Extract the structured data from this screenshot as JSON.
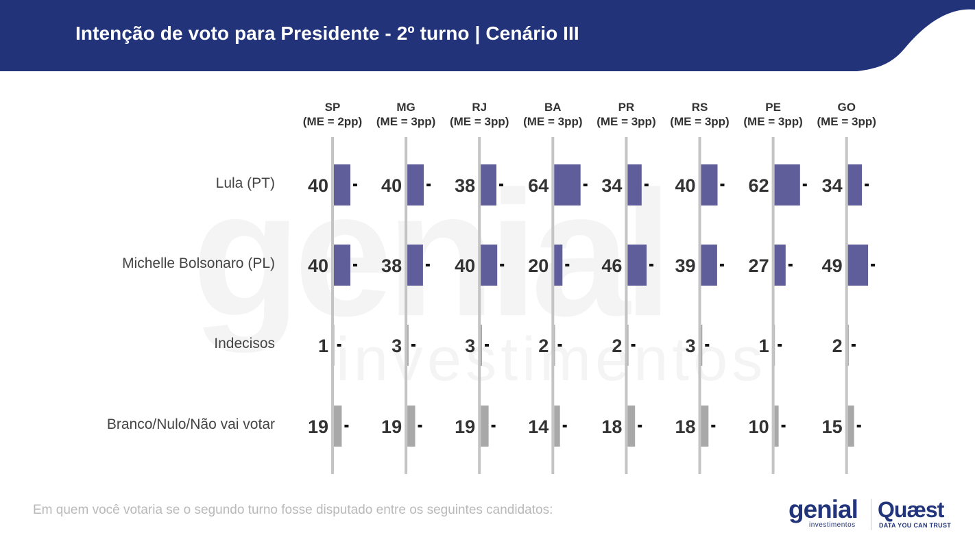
{
  "title": "Intenção de voto para Presidente - 2º turno | Cenário III",
  "watermark": {
    "main": "genial",
    "sub": "investimentos"
  },
  "footer_note": "Em quem você votaria se o segundo turno fosse disputado entre os seguintes candidatos:",
  "logos": {
    "genial": "genial",
    "genial_sub": "investimentos",
    "quaest": "Quæst",
    "quaest_sub": "DATA YOU CAN TRUST"
  },
  "colors": {
    "header": "#22337a",
    "candidate_bar": "#5f5e9a",
    "other_bar": "#a8a8a8",
    "axis": "#c4c4c4",
    "text": "#333333"
  },
  "chart_data": {
    "type": "bar",
    "orientation": "horizontal-small-multiples",
    "columns": [
      {
        "code": "SP",
        "me": "(ME = 2pp)"
      },
      {
        "code": "MG",
        "me": "(ME = 3pp)"
      },
      {
        "code": "RJ",
        "me": "(ME = 3pp)"
      },
      {
        "code": "BA",
        "me": "(ME = 3pp)"
      },
      {
        "code": "PR",
        "me": "(ME = 3pp)"
      },
      {
        "code": "RS",
        "me": "(ME = 3pp)"
      },
      {
        "code": "PE",
        "me": "(ME = 3pp)"
      },
      {
        "code": "GO",
        "me": "(ME = 3pp)"
      }
    ],
    "series": [
      {
        "name": "Lula (PT)",
        "kind": "candidate",
        "values": [
          40,
          40,
          38,
          64,
          34,
          40,
          62,
          34
        ]
      },
      {
        "name": "Michelle Bolsonaro (PL)",
        "kind": "candidate",
        "values": [
          40,
          38,
          40,
          20,
          46,
          39,
          27,
          49
        ]
      },
      {
        "name": "Indecisos",
        "kind": "other",
        "values": [
          1,
          3,
          3,
          2,
          2,
          3,
          1,
          2
        ]
      },
      {
        "name": "Branco/Nulo/Não vai votar",
        "kind": "other",
        "values": [
          19,
          19,
          19,
          14,
          18,
          18,
          10,
          15
        ]
      }
    ],
    "xlim": [
      0,
      100
    ]
  }
}
